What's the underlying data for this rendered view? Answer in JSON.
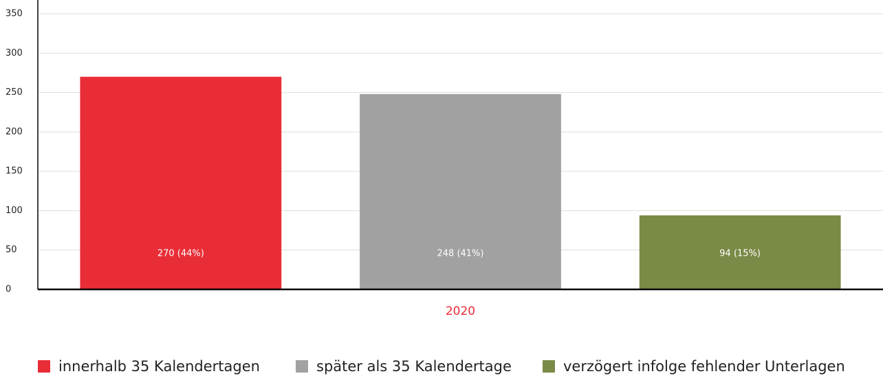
{
  "chart_data": {
    "type": "bar",
    "categories": [
      "2020"
    ],
    "series": [
      {
        "name": "innerhalb 35 Kalendertagen",
        "color": "#e92d37",
        "values": [
          270
        ],
        "value_labels": [
          "270 (44%)"
        ]
      },
      {
        "name": "später als 35 Kalendertage",
        "color": "#a0a1a0",
        "values": [
          248
        ],
        "value_labels": [
          "248 (41%)"
        ]
      },
      {
        "name": "verzögert infolge fehlender Unterlagen",
        "color": "#7a8a47",
        "values": [
          94
        ],
        "value_labels": [
          "94 (15%)"
        ]
      }
    ],
    "ylim": [
      0,
      350
    ],
    "yticks": [
      0,
      50,
      100,
      150,
      200,
      250,
      300,
      350
    ],
    "grid": true,
    "legend": "bottom",
    "category_label_color": "#e92d37"
  }
}
